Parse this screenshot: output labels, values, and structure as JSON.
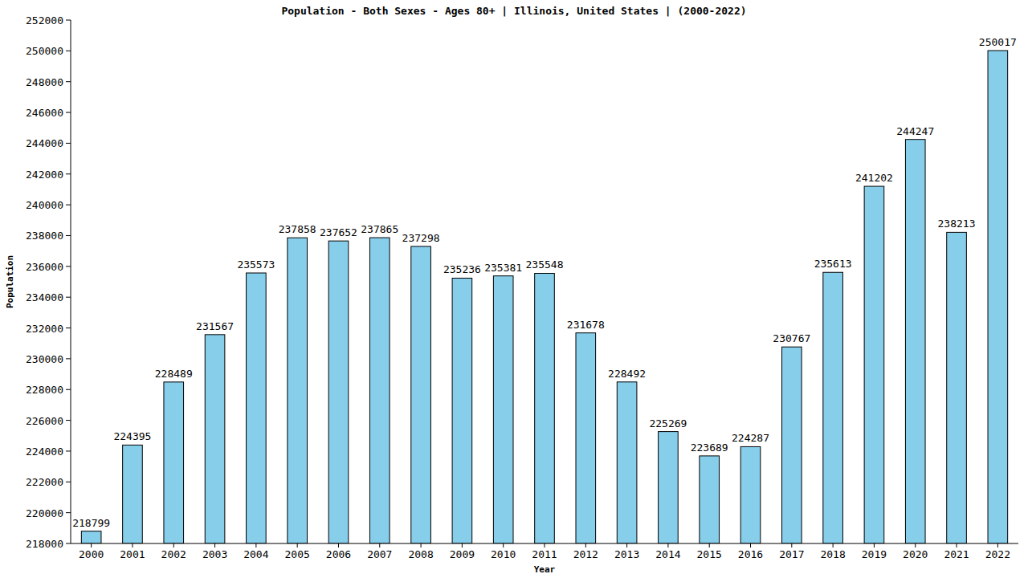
{
  "chart_data": {
    "type": "bar",
    "title": "Population - Both Sexes - Ages 80+ | Illinois, United States |  (2000-2022)",
    "x_label": "Year",
    "y_label": "Population",
    "categories": [
      "2000",
      "2001",
      "2002",
      "2003",
      "2004",
      "2005",
      "2006",
      "2007",
      "2008",
      "2009",
      "2010",
      "2011",
      "2012",
      "2013",
      "2014",
      "2015",
      "2016",
      "2017",
      "2018",
      "2019",
      "2020",
      "2021",
      "2022"
    ],
    "values": [
      218799,
      224395,
      228489,
      231567,
      235573,
      237858,
      237652,
      237865,
      237298,
      235236,
      235381,
      235548,
      231678,
      228492,
      225269,
      223689,
      224287,
      230767,
      235613,
      241202,
      244247,
      238213,
      250017
    ],
    "color": "#87ceeb",
    "ylim": [
      218000,
      252000
    ],
    "yticks": [
      218000,
      220000,
      222000,
      224000,
      226000,
      228000,
      230000,
      232000,
      234000,
      236000,
      238000,
      240000,
      242000,
      244000,
      246000,
      248000,
      250000,
      252000
    ],
    "grid": false,
    "data_labels": true
  }
}
